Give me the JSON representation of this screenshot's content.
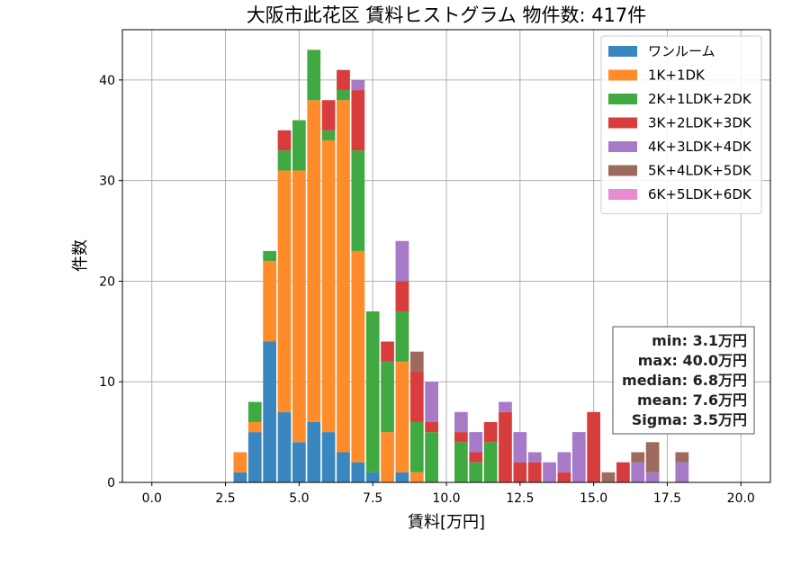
{
  "chart_data": {
    "type": "bar",
    "stacked": true,
    "title": "大阪市此花区 賃料ヒストグラム 物件数: 417件",
    "xlabel": "賃料[万円]",
    "ylabel": "件数",
    "xlim": [
      -1.0,
      21.0
    ],
    "ylim": [
      0,
      45
    ],
    "xticks": [
      0.0,
      2.5,
      5.0,
      7.5,
      10.0,
      12.5,
      15.0,
      17.5,
      20.0
    ],
    "xtick_labels": [
      "0.0",
      "2.5",
      "5.0",
      "7.5",
      "10.0",
      "12.5",
      "15.0",
      "17.5",
      "20.0"
    ],
    "yticks": [
      0,
      10,
      20,
      30,
      40
    ],
    "ytick_labels": [
      "0",
      "10",
      "20",
      "30",
      "40"
    ],
    "bin_width": 0.5,
    "bar_width_ratio": 0.9,
    "grid": true,
    "legend_position": "top-right",
    "bin_centers": [
      3.0,
      3.5,
      4.0,
      4.5,
      5.0,
      5.5,
      6.0,
      6.5,
      7.0,
      7.5,
      8.0,
      8.5,
      9.0,
      9.5,
      10.5,
      11.0,
      11.5,
      12.0,
      12.5,
      13.0,
      13.5,
      14.0,
      14.5,
      15.0,
      15.5,
      16.0,
      16.5,
      17.0,
      18.0
    ],
    "series": [
      {
        "name": "ワンルーム",
        "color": "#3a87c0",
        "values": [
          1,
          5,
          14,
          7,
          4,
          6,
          5,
          3,
          2,
          1,
          0,
          1,
          0,
          0,
          0,
          0,
          0,
          0,
          0,
          0,
          0,
          0,
          0,
          0,
          0,
          0,
          0,
          0,
          0
        ]
      },
      {
        "name": "1K+1DK",
        "color": "#ff8c2a",
        "values": [
          2,
          1,
          8,
          24,
          27,
          32,
          29,
          35,
          21,
          0,
          5,
          11,
          1,
          0,
          0,
          0,
          0,
          0,
          0,
          0,
          0,
          0,
          0,
          0,
          0,
          0,
          0,
          0,
          0
        ]
      },
      {
        "name": "2K+1LDK+2DK",
        "color": "#41a941",
        "values": [
          0,
          2,
          1,
          2,
          5,
          5,
          1,
          1,
          10,
          16,
          7,
          5,
          5,
          5,
          4,
          2,
          4,
          0,
          0,
          0,
          0,
          0,
          0,
          0,
          0,
          0,
          0,
          0,
          0
        ]
      },
      {
        "name": "3K+2LDK+3DK",
        "color": "#d83d3d",
        "values": [
          0,
          0,
          0,
          2,
          0,
          0,
          3,
          2,
          6,
          0,
          2,
          3,
          5,
          1,
          1,
          1,
          2,
          7,
          2,
          2,
          0,
          1,
          0,
          7,
          0,
          2,
          0,
          0,
          0
        ]
      },
      {
        "name": "4K+3LDK+4DK",
        "color": "#a67ac6",
        "values": [
          0,
          0,
          0,
          0,
          0,
          0,
          0,
          0,
          1,
          0,
          0,
          4,
          0,
          4,
          2,
          2,
          0,
          1,
          3,
          1,
          2,
          2,
          5,
          0,
          0,
          0,
          2,
          1,
          2
        ]
      },
      {
        "name": "5K+4LDK+5DK",
        "color": "#9c6b5d",
        "values": [
          0,
          0,
          0,
          0,
          0,
          0,
          0,
          0,
          0,
          0,
          0,
          0,
          2,
          0,
          0,
          0,
          0,
          0,
          0,
          0,
          0,
          0,
          0,
          0,
          1,
          0,
          1,
          3,
          1
        ]
      },
      {
        "name": "6K+5LDK+6DK",
        "color": "#e98bd0",
        "values": [
          0,
          0,
          0,
          0,
          0,
          0,
          0,
          0,
          0,
          0,
          0,
          0,
          0,
          0,
          0,
          0,
          0,
          0,
          0,
          0,
          0,
          0,
          0,
          0,
          0,
          0,
          0,
          0,
          0
        ]
      }
    ],
    "annotations": [
      "min: 3.1万円",
      "max: 40.0万円",
      "median: 6.8万円",
      "mean: 7.6万円",
      "Sigma: 3.5万円"
    ]
  }
}
